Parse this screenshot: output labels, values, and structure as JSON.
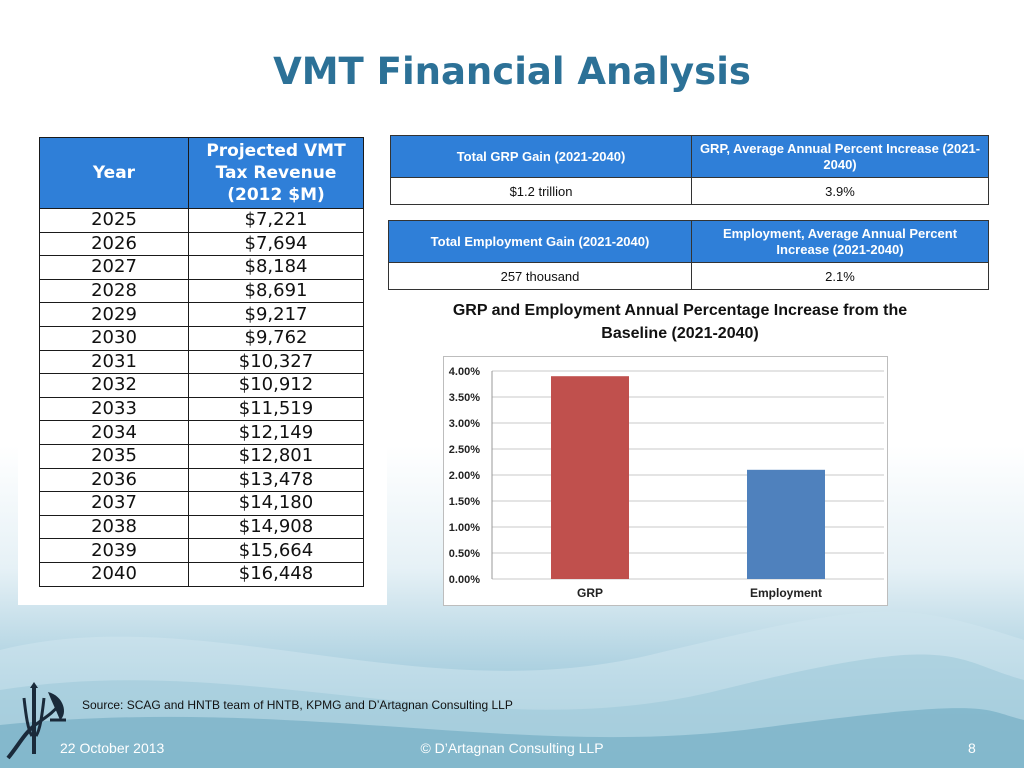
{
  "slide": {
    "title": "VMT Financial Analysis",
    "source": "Source: SCAG and HNTB team of HNTB, KPMG and D’Artagnan Consulting LLP",
    "date": "22 October 2013",
    "copyright": "© D’Artagnan Consulting LLP",
    "page_number": "8"
  },
  "revenue_table": {
    "headers": [
      "Year",
      "Projected VMT Tax Revenue (2012 $M)"
    ],
    "rows": [
      [
        "2025",
        "$7,221"
      ],
      [
        "2026",
        "$7,694"
      ],
      [
        "2027",
        "$8,184"
      ],
      [
        "2028",
        "$8,691"
      ],
      [
        "2029",
        "$9,217"
      ],
      [
        "2030",
        "$9,762"
      ],
      [
        "2031",
        "$10,327"
      ],
      [
        "2032",
        "$10,912"
      ],
      [
        "2033",
        "$11,519"
      ],
      [
        "2034",
        "$12,149"
      ],
      [
        "2035",
        "$12,801"
      ],
      [
        "2036",
        "$13,478"
      ],
      [
        "2037",
        "$14,180"
      ],
      [
        "2038",
        "$14,908"
      ],
      [
        "2039",
        "$15,664"
      ],
      [
        "2040",
        "$16,448"
      ]
    ]
  },
  "grp_table": {
    "headers": [
      "Total GRP Gain (2021-2040)",
      "GRP, Average Annual Percent Increase (2021-2040)"
    ],
    "values": [
      "$1.2 trillion",
      "3.9%"
    ]
  },
  "employment_table": {
    "headers": [
      "Total Employment Gain (2021-2040)",
      "Employment, Average Annual Percent Increase (2021-2040)"
    ],
    "values": [
      "257 thousand",
      "2.1%"
    ]
  },
  "chart_data": {
    "type": "bar",
    "title": "GRP and Employment Annual Percentage Increase from the Baseline (2021-2040)",
    "categories": [
      "GRP",
      "Employment"
    ],
    "values": [
      3.9,
      2.1
    ],
    "colors": [
      "#c0504d",
      "#4f81bd"
    ],
    "ylim": [
      0,
      4
    ],
    "yticks": [
      "0.00%",
      "0.50%",
      "1.00%",
      "1.50%",
      "2.00%",
      "2.50%",
      "3.00%",
      "3.50%",
      "4.00%"
    ],
    "xlabel": "",
    "ylabel": "",
    "grid": true,
    "legend": "none"
  }
}
